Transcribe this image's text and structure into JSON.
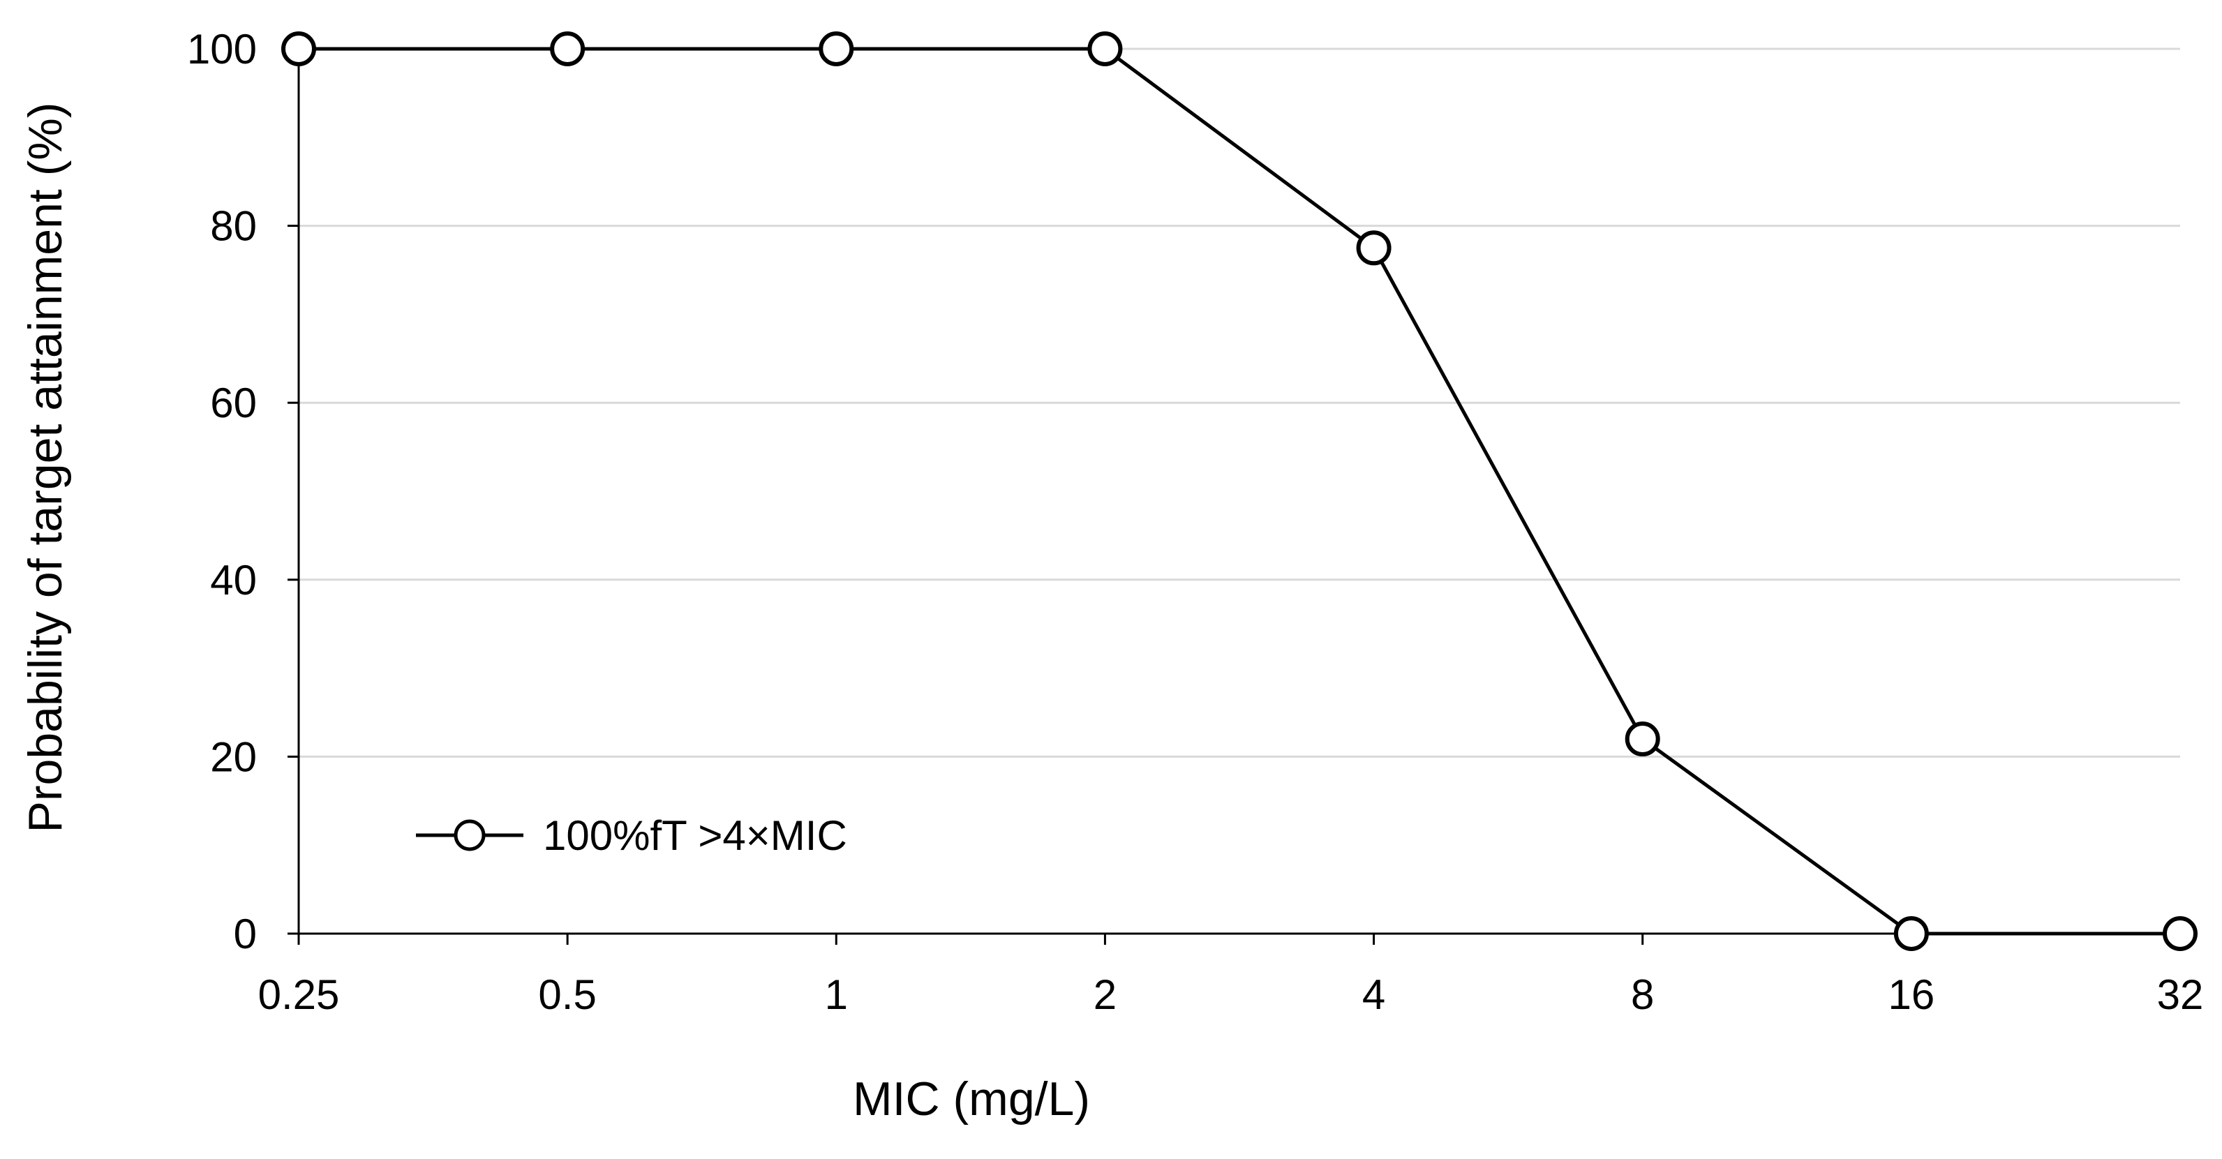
{
  "chart_data": {
    "type": "line",
    "title": "",
    "xlabel": "MIC (mg/L)",
    "ylabel": "Probability of  target attainment (%)",
    "categories": [
      "0.25",
      "0.5",
      "1",
      "2",
      "4",
      "8",
      "16",
      "32"
    ],
    "series": [
      {
        "name": "100%fT >4×MIC",
        "values": [
          100,
          100,
          100,
          100,
          77.5,
          22,
          0,
          0
        ],
        "marker": "open-circle",
        "color": "#000000"
      }
    ],
    "ylim": [
      0,
      100
    ],
    "yticks": [
      "0",
      "20",
      "40",
      "60",
      "80",
      "100"
    ],
    "grid": "horizontal",
    "legend_position": "bottom-left",
    "gridline_color": "#d9d9d9",
    "axis_color": "#000000"
  }
}
